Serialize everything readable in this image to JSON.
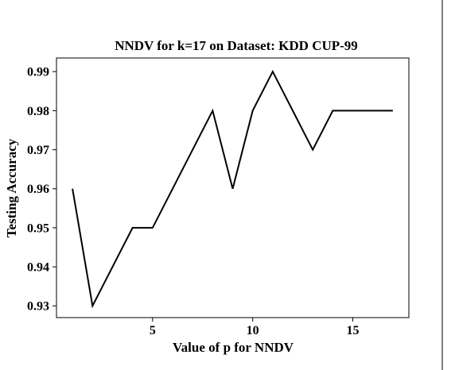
{
  "chart_data": {
    "type": "line",
    "title": "NNDV for k=17 on Dataset: KDD CUP-99",
    "xlabel": "Value of p for NNDV",
    "ylabel": "Testing Accuracy",
    "xlim": [
      0.2,
      17.8
    ],
    "ylim": [
      0.927,
      0.9935
    ],
    "x_ticks": [
      5,
      10,
      15
    ],
    "x_tick_labels": [
      "5",
      "10",
      "15"
    ],
    "y_ticks": [
      0.93,
      0.94,
      0.95,
      0.96,
      0.97,
      0.98,
      0.99
    ],
    "y_tick_labels": [
      "0.93",
      "0.94",
      "0.95",
      "0.96",
      "0.97",
      "0.98",
      "0.99"
    ],
    "grid": false,
    "series": [
      {
        "x": [
          1,
          2,
          3,
          4,
          5,
          6,
          7,
          8,
          9,
          10,
          11,
          12,
          13,
          14,
          15,
          16,
          17
        ],
        "values": [
          0.96,
          0.93,
          0.94,
          0.95,
          0.95,
          0.96,
          0.97,
          0.98,
          0.96,
          0.98,
          0.99,
          0.98,
          0.97,
          0.98,
          0.98,
          0.98,
          0.98
        ],
        "color": "#000000"
      }
    ]
  }
}
